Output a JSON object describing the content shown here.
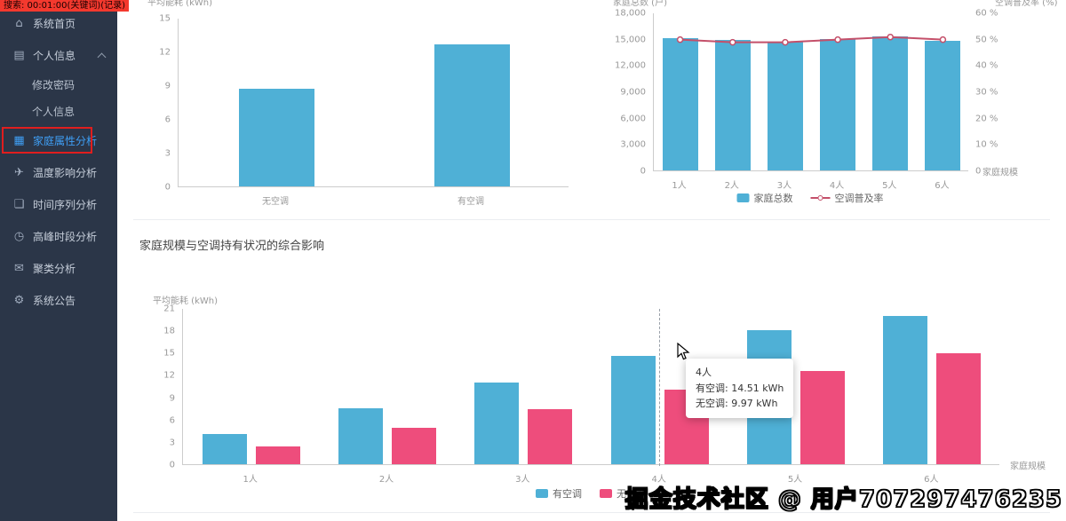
{
  "overlay": {
    "recording_note": "搜索: 00:01:00(关键词)(记录)",
    "watermark": "掘金技术社区 @ 用户707297476235"
  },
  "sidebar": {
    "items": [
      {
        "label": "系统首页",
        "icon": "home-icon"
      },
      {
        "label": "个人信息",
        "icon": "user-icon",
        "expanded": true
      },
      {
        "label": "修改密码",
        "indent": true
      },
      {
        "label": "个人信息",
        "indent": true
      },
      {
        "label": "家庭属性分析",
        "icon": "grid-icon",
        "active": true
      },
      {
        "label": "温度影响分析",
        "icon": "paper-plane-icon"
      },
      {
        "label": "时间序列分析",
        "icon": "chat-icon"
      },
      {
        "label": "高峰时段分析",
        "icon": "clock-icon"
      },
      {
        "label": "聚类分析",
        "icon": "mail-icon"
      },
      {
        "label": "系统公告",
        "icon": "gear-icon"
      }
    ]
  },
  "main": {
    "section_title": "家庭规模与空调持有状况的综合影响"
  },
  "colors": {
    "bar_blue": "#4fb0d6",
    "bar_pink": "#ee4d7c",
    "line_red": "#c4506a",
    "active_blue": "#3f9ff5"
  },
  "chart_data": [
    {
      "type": "bar",
      "ylabel": "平均能耗 (kWh)",
      "categories": [
        "无空调",
        "有空调"
      ],
      "values": [
        8.7,
        12.6
      ],
      "ylim": [
        0,
        15
      ],
      "yticks": [
        15,
        12,
        9,
        6,
        3,
        0
      ],
      "grid": false
    },
    {
      "type": "bar+line",
      "ylabel": "家庭总数 (户)",
      "ylabel_right": "空调普及率 (%)",
      "categories": [
        "1人",
        "2人",
        "3人",
        "4人",
        "5人",
        "6人"
      ],
      "series": [
        {
          "name": "家庭总数",
          "type": "bar",
          "axis": "left",
          "values": [
            15100,
            14900,
            14700,
            14950,
            15250,
            14750
          ]
        },
        {
          "name": "空调普及率",
          "type": "line",
          "axis": "right",
          "values": [
            50,
            49,
            49,
            50,
            51,
            50
          ]
        }
      ],
      "ylim_left": [
        0,
        18000
      ],
      "yticks_left": [
        "18,000",
        "15,000",
        "12,000",
        "9,000",
        "6,000",
        "3,000",
        "0"
      ],
      "ylim_right": [
        0,
        60
      ],
      "yticks_right": [
        "60 %",
        "50 %",
        "40 %",
        "30 %",
        "20 %",
        "10 %",
        "0"
      ],
      "x_axis_name": "家庭规模",
      "legend": [
        "家庭总数",
        "空调普及率"
      ],
      "legend_position": "bottom",
      "grid": false
    },
    {
      "type": "bar",
      "ylabel": "平均能耗 (kWh)",
      "x_axis_name": "家庭规模",
      "categories": [
        "1人",
        "2人",
        "3人",
        "4人",
        "5人",
        "6人"
      ],
      "series": [
        {
          "name": "有空调",
          "values": [
            4.0,
            7.5,
            11.0,
            14.51,
            18.0,
            19.9
          ]
        },
        {
          "name": "无空调",
          "values": [
            2.4,
            4.9,
            7.4,
            9.97,
            12.5,
            14.9
          ]
        }
      ],
      "ylim": [
        0,
        21
      ],
      "yticks": [
        21,
        18,
        15,
        12,
        9,
        6,
        3,
        0
      ],
      "legend": [
        "有空调",
        "无空调"
      ],
      "legend_position": "bottom",
      "grid": false
    }
  ],
  "tooltip": {
    "title": "4人",
    "lines": [
      "有空调: 14.51 kWh",
      "无空调: 9.97 kWh"
    ]
  }
}
